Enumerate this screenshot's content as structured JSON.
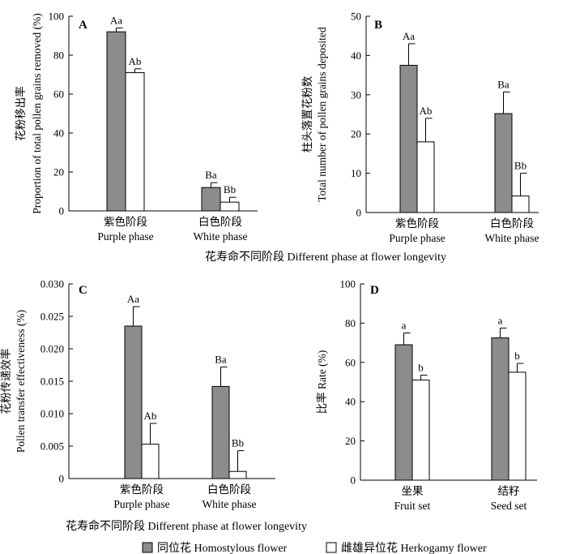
{
  "colors": {
    "homostylous": "#8c8c8c",
    "herkogamy": "#ffffff",
    "axis": "#000000"
  },
  "shared_xlabel": "花寿命不同阶段 Different phase at flower longevity",
  "legend": {
    "position": "bottom-center",
    "items": [
      {
        "label": "同位花 Homostylous flower",
        "color": "#8c8c8c"
      },
      {
        "label": "雌雄异位花 Herkogamy flower",
        "color": "#ffffff"
      }
    ]
  },
  "chart_data": [
    {
      "panel": "A",
      "type": "bar",
      "categories": [
        {
          "zh": "紫色阶段",
          "en": "Purple phase"
        },
        {
          "zh": "白色阶段",
          "en": "White phase"
        }
      ],
      "ylabel_zh": "花粉移出率",
      "ylabel_en": "Proportion of total pollen grains removed (%)",
      "ylim": [
        0,
        100
      ],
      "yticks": [
        "0",
        "20",
        "40",
        "60",
        "80",
        "100"
      ],
      "series": [
        {
          "name": "同位花 Homostylous flower",
          "values": [
            92,
            12
          ],
          "errors": [
            2,
            2.5
          ],
          "labels": [
            "Aa",
            "Ba"
          ]
        },
        {
          "name": "雌雄异位花 Herkogamy flower",
          "values": [
            71,
            4.5
          ],
          "errors": [
            2,
            2.5
          ],
          "labels": [
            "Ab",
            "Bb"
          ]
        }
      ]
    },
    {
      "panel": "B",
      "type": "bar",
      "categories": [
        {
          "zh": "紫色阶段",
          "en": "Purple phase"
        },
        {
          "zh": "白色阶段",
          "en": "White phase"
        }
      ],
      "ylabel_zh": "柱头落置花粉数",
      "ylabel_en": "Total number of pollen grains deposited",
      "ylim": [
        0,
        50
      ],
      "yticks": [
        "0",
        "10",
        "20",
        "30",
        "40",
        "50"
      ],
      "series": [
        {
          "name": "同位花 Homostylous flower",
          "values": [
            37.5,
            25.2
          ],
          "errors": [
            5.5,
            5.5
          ],
          "labels": [
            "Aa",
            "Ba"
          ]
        },
        {
          "name": "雌雄异位花 Herkogamy flower",
          "values": [
            18,
            4.2
          ],
          "errors": [
            6,
            5.8
          ],
          "labels": [
            "Ab",
            "Bb"
          ]
        }
      ]
    },
    {
      "panel": "C",
      "type": "bar",
      "categories": [
        {
          "zh": "紫色阶段",
          "en": "Purple phase"
        },
        {
          "zh": "白色阶段",
          "en": "White phase"
        }
      ],
      "ylabel_zh": "花粉传递效率",
      "ylabel_en": "Pollen transfer effectiveness (%)",
      "ylim": [
        0,
        0.03
      ],
      "yticks": [
        "0",
        "0.005",
        "0.010",
        "0.015",
        "0.020",
        "0.025",
        "0.030"
      ],
      "series": [
        {
          "name": "同位花 Homostylous flower",
          "values": [
            0.0235,
            0.0142
          ],
          "errors": [
            0.003,
            0.003
          ],
          "labels": [
            "Aa",
            "Ba"
          ]
        },
        {
          "name": "雌雄异位花 Herkogamy flower",
          "values": [
            0.0053,
            0.0011
          ],
          "errors": [
            0.0032,
            0.0032
          ],
          "labels": [
            "Ab",
            "Bb"
          ]
        }
      ]
    },
    {
      "panel": "D",
      "type": "bar",
      "categories": [
        {
          "zh": "坐果",
          "en": "Fruit set"
        },
        {
          "zh": "结籽",
          "en": "Seed set"
        }
      ],
      "ylabel_zh": "比率",
      "ylabel_en": "Rate (%)",
      "ylim": [
        0,
        100
      ],
      "yticks": [
        "0",
        "20",
        "40",
        "60",
        "80",
        "100"
      ],
      "series": [
        {
          "name": "同位花 Homostylous flower",
          "values": [
            69,
            72.5
          ],
          "errors": [
            6,
            5
          ],
          "labels": [
            "a",
            "a"
          ]
        },
        {
          "name": "雌雄异位花 Herkogamy flower",
          "values": [
            51,
            55
          ],
          "errors": [
            2.5,
            4.5
          ],
          "labels": [
            "b",
            "b"
          ]
        }
      ]
    }
  ]
}
